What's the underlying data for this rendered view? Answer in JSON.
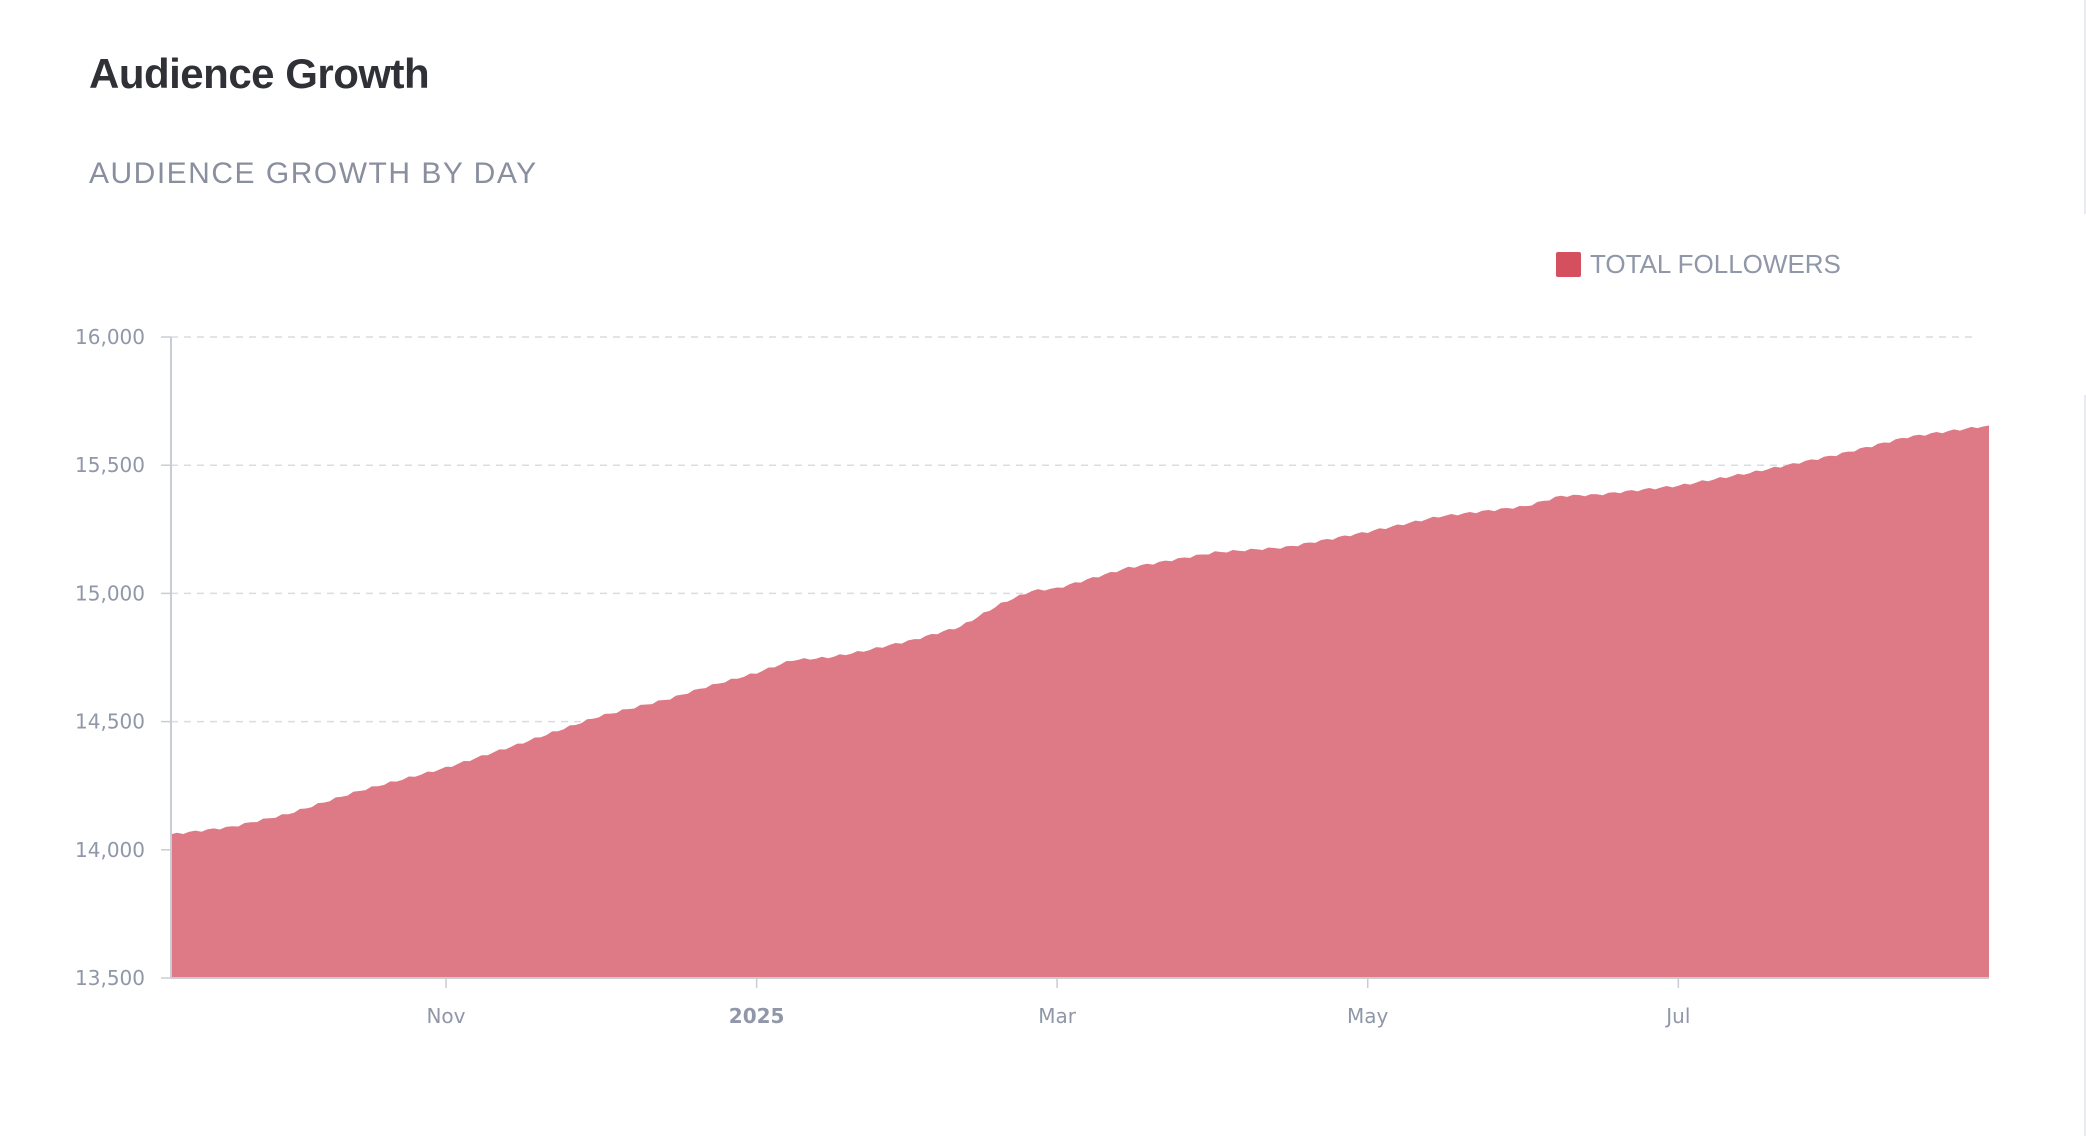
{
  "header": {
    "title": "Audience Growth",
    "subtitle": "AUDIENCE GROWTH BY DAY"
  },
  "colors": {
    "series": "#d4505f",
    "area_fill": "#de7a86",
    "grid": "#d9dce3",
    "axis": "#c8ccd5"
  },
  "chart_data": {
    "type": "area",
    "title": "",
    "subtitle": "AUDIENCE GROWTH BY DAY",
    "xlabel": "",
    "ylabel": "",
    "ylim": [
      13500,
      16000
    ],
    "xlim": [
      "2024-09-08",
      "2025-08-31"
    ],
    "yticks": [
      {
        "value": 16000,
        "label": "16,000"
      },
      {
        "value": 15500,
        "label": "15,500"
      },
      {
        "value": 15000,
        "label": "15,000"
      },
      {
        "value": 14500,
        "label": "14,500"
      },
      {
        "value": 14000,
        "label": "14,000"
      },
      {
        "value": 13500,
        "label": "13,500"
      }
    ],
    "xticks": [
      {
        "date": "2024-11-01",
        "label": "Nov",
        "bold": false
      },
      {
        "date": "2025-01-01",
        "label": "2025",
        "bold": true
      },
      {
        "date": "2025-03-01",
        "label": "Mar",
        "bold": false
      },
      {
        "date": "2025-05-01",
        "label": "May",
        "bold": false
      },
      {
        "date": "2025-07-01",
        "label": "Jul",
        "bold": false
      }
    ],
    "grid": true,
    "legend_position": "top-right",
    "series": [
      {
        "name": "TOTAL FOLLOWERS",
        "points": [
          {
            "x": "2024-09-08",
            "y": 14060
          },
          {
            "x": "2024-09-20",
            "y": 14090
          },
          {
            "x": "2024-10-01",
            "y": 14140
          },
          {
            "x": "2024-10-15",
            "y": 14230
          },
          {
            "x": "2024-11-01",
            "y": 14320
          },
          {
            "x": "2024-11-15",
            "y": 14410
          },
          {
            "x": "2024-12-01",
            "y": 14520
          },
          {
            "x": "2024-12-15",
            "y": 14590
          },
          {
            "x": "2024-12-22",
            "y": 14635
          },
          {
            "x": "2025-01-01",
            "y": 14690
          },
          {
            "x": "2025-01-08",
            "y": 14740
          },
          {
            "x": "2025-01-15",
            "y": 14750
          },
          {
            "x": "2025-01-22",
            "y": 14775
          },
          {
            "x": "2025-02-01",
            "y": 14820
          },
          {
            "x": "2025-02-10",
            "y": 14870
          },
          {
            "x": "2025-02-18",
            "y": 14960
          },
          {
            "x": "2025-02-24",
            "y": 15010
          },
          {
            "x": "2025-03-01",
            "y": 15020
          },
          {
            "x": "2025-03-15",
            "y": 15100
          },
          {
            "x": "2025-04-01",
            "y": 15160
          },
          {
            "x": "2025-04-15",
            "y": 15180
          },
          {
            "x": "2025-05-01",
            "y": 15240
          },
          {
            "x": "2025-05-15",
            "y": 15300
          },
          {
            "x": "2025-06-01",
            "y": 15340
          },
          {
            "x": "2025-06-08",
            "y": 15380
          },
          {
            "x": "2025-06-15",
            "y": 15385
          },
          {
            "x": "2025-07-01",
            "y": 15420
          },
          {
            "x": "2025-07-15",
            "y": 15470
          },
          {
            "x": "2025-08-01",
            "y": 15540
          },
          {
            "x": "2025-08-15",
            "y": 15610
          },
          {
            "x": "2025-08-31",
            "y": 15655
          }
        ]
      }
    ]
  }
}
